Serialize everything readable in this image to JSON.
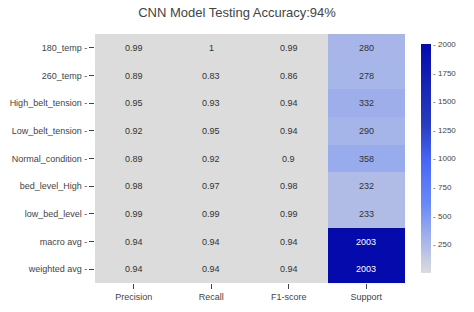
{
  "chart_data": {
    "type": "heatmap",
    "title": "CNN Model Testing Accuracy:94%",
    "rows": [
      "180_temp -",
      "260_temp -",
      "High_belt_tension -",
      "Low_belt_tension -",
      "Normal_condition -",
      "bed_level_High -",
      "low_bed_level -",
      "macro avg -",
      "weighted avg -"
    ],
    "columns": [
      "Precision",
      "Recall",
      "F1-score",
      "Support"
    ],
    "values": [
      [
        0.99,
        1,
        0.99,
        280
      ],
      [
        0.89,
        0.83,
        0.86,
        278
      ],
      [
        0.95,
        0.93,
        0.94,
        332
      ],
      [
        0.92,
        0.95,
        0.94,
        290
      ],
      [
        0.89,
        0.92,
        0.9,
        358
      ],
      [
        0.98,
        0.97,
        0.98,
        232
      ],
      [
        0.99,
        0.99,
        0.99,
        233
      ],
      [
        0.94,
        0.94,
        0.94,
        2003
      ],
      [
        0.94,
        0.94,
        0.94,
        2003
      ]
    ],
    "zlim": [
      0,
      2003
    ],
    "colorbar_ticks": [
      {
        "value": 250,
        "label": "- 250"
      },
      {
        "value": 500,
        "label": "- 500"
      },
      {
        "value": 750,
        "label": "- 750"
      },
      {
        "value": 1000,
        "label": "- 1000"
      },
      {
        "value": 1250,
        "label": "- 1250"
      },
      {
        "value": 1500,
        "label": "- 1500"
      },
      {
        "value": 1750,
        "label": "- 1750"
      },
      {
        "value": 2000,
        "label": "- 2000"
      }
    ],
    "color": "Blues",
    "data_labels": true,
    "grid": false
  }
}
